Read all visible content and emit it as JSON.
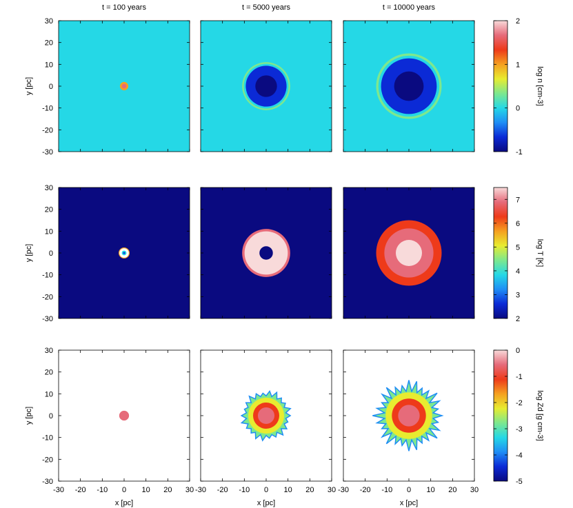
{
  "chart_data": {
    "type": "heatmap",
    "columns": [
      {
        "time_label": "t   =   100 years",
        "t_years": 100
      },
      {
        "time_label": "t   =   5000 years",
        "t_years": 5000
      },
      {
        "time_label": "t   =   10000 years",
        "t_years": 10000
      }
    ],
    "x_axis": {
      "label": "x [pc]",
      "range": [
        -30,
        30
      ],
      "ticks": [
        "-30",
        "-20",
        "-10",
        "0",
        "10",
        "20",
        "30"
      ]
    },
    "y_axis": {
      "label": "y [pc]",
      "range": [
        -30,
        30
      ],
      "ticks": [
        "30",
        "20",
        "10",
        "0",
        "-10",
        "-20",
        "-30"
      ]
    },
    "rows": [
      {
        "quantity": "log n",
        "colorbar_label": "log n [cm-3]",
        "colorbar_range": [
          -1,
          2
        ],
        "colorbar_ticks": [
          "2",
          "1",
          "0",
          "-1"
        ],
        "colormap": [
          "#0a0a80",
          "#0b2ad6",
          "#1f8ef5",
          "#25d8e6",
          "#7de88e",
          "#e8ec30",
          "#f5a020",
          "#ee3a1a",
          "#e66b7a",
          "#f8dada"
        ],
        "background_log_value": 0.0,
        "remnant_radius_pc": [
          1.2,
          11,
          15
        ]
      },
      {
        "quantity": "log T",
        "colorbar_label": "log T [K]",
        "colorbar_range": [
          2,
          7.5
        ],
        "colorbar_ticks": [
          "7",
          "6",
          "5",
          "4",
          "3",
          "2"
        ],
        "colormap": [
          "#0a0a80",
          "#0b2ad6",
          "#1f8ef5",
          "#25d8e6",
          "#7de88e",
          "#e8ec30",
          "#f5a020",
          "#ee3a1a",
          "#e66b7a",
          "#f8dada"
        ],
        "background_log_value": 2.0,
        "remnant_radius_pc": [
          1.8,
          11,
          15
        ]
      },
      {
        "quantity": "log Zd",
        "colorbar_label": "log Zd [g cm-3]",
        "colorbar_range": [
          -5,
          0
        ],
        "colorbar_ticks": [
          "0",
          "-1",
          "-2",
          "-3",
          "-4",
          "-5"
        ],
        "colormap": [
          "#0a0a80",
          "#0b2ad6",
          "#1f8ef5",
          "#25d8e6",
          "#7de88e",
          "#e8ec30",
          "#f5a020",
          "#ee3a1a",
          "#e66b7a",
          "#f8dada"
        ],
        "background_log_value": null,
        "remnant_radius_pc": [
          1.8,
          10,
          13
        ]
      }
    ]
  }
}
